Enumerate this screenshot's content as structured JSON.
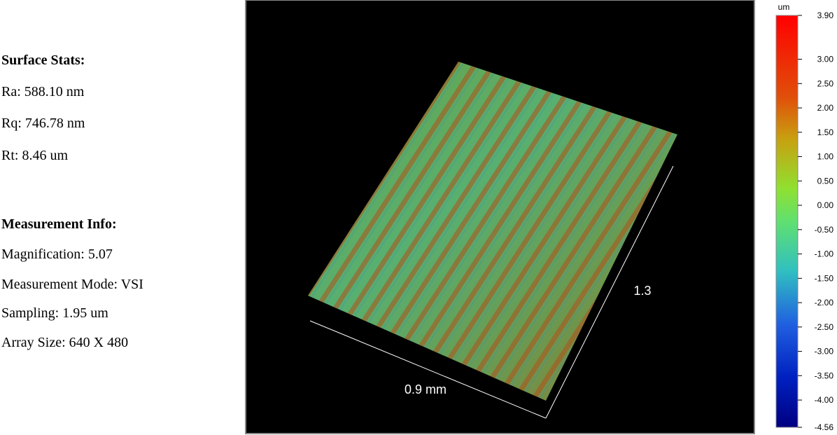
{
  "surface_stats": {
    "title": "Surface Stats:",
    "items": [
      "Ra: 588.10 nm",
      "Rq: 746.78 nm",
      "Rt: 8.46 um"
    ]
  },
  "measurement_info": {
    "title": "Measurement Info:",
    "items": [
      "Magnification: 5.07",
      "Measurement Mode: VSI",
      "Sampling: 1.95 um",
      "Array Size: 640 X 480"
    ]
  },
  "view": {
    "x_label": "0.9 mm",
    "y_label": "1.3"
  },
  "colorbar": {
    "unit": "um",
    "range": [
      -4.56,
      3.9
    ],
    "ticks": [
      {
        "value": 3.9,
        "label": "3.90"
      },
      {
        "value": 3,
        "label": "3.00"
      },
      {
        "value": 2.5,
        "label": "2.50"
      },
      {
        "value": 2,
        "label": "2.00"
      },
      {
        "value": 1.5,
        "label": "1.50"
      },
      {
        "value": 1,
        "label": "1.00"
      },
      {
        "value": 0.5,
        "label": "0.50"
      },
      {
        "value": 0,
        "label": "0.00"
      },
      {
        "value": -0.5,
        "label": "-0.50"
      },
      {
        "value": -1,
        "label": "-1.00"
      },
      {
        "value": -1.5,
        "label": "-1.50"
      },
      {
        "value": -2,
        "label": "-2.00"
      },
      {
        "value": -2.5,
        "label": "-2.50"
      },
      {
        "value": -3,
        "label": "-3.00"
      },
      {
        "value": -3.5,
        "label": "-3.50"
      },
      {
        "value": -4,
        "label": "-4.00"
      },
      {
        "value": -4.56,
        "label": "-4.56"
      }
    ]
  }
}
